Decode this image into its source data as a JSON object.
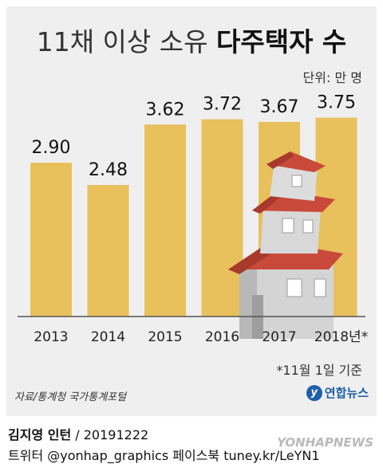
{
  "title_light": "11채 이상 소유",
  "title_bold": "다주택자 수",
  "unit": "단위: 만 명",
  "footnote": "*11월 1일 기준",
  "source": "자료/통계청 국가통계포털",
  "logo_text": "연합뉴스",
  "credit_name": "김지영 인턴",
  "credit_date": " / 20191222",
  "social": "트위터 @yonhap_graphics  페이스북 tuney.kr/LeYN1",
  "watermark": "YONHAPNEWS",
  "colors": {
    "bar": "#e8c05c",
    "card": "#efefef",
    "roof": "#c94a3a",
    "wall": "#d4d4d4"
  },
  "chart_data": {
    "type": "bar",
    "title": "11채 이상 소유 다주택자 수",
    "categories": [
      "2013",
      "2014",
      "2015",
      "2016",
      "2017",
      "2018년*"
    ],
    "values": [
      2.9,
      2.48,
      3.62,
      3.72,
      3.67,
      3.75
    ],
    "value_labels": [
      "2.90",
      "2.48",
      "3.62",
      "3.72",
      "3.67",
      "3.75"
    ],
    "unit": "단위: 만 명",
    "grid": false,
    "legend": "none"
  }
}
